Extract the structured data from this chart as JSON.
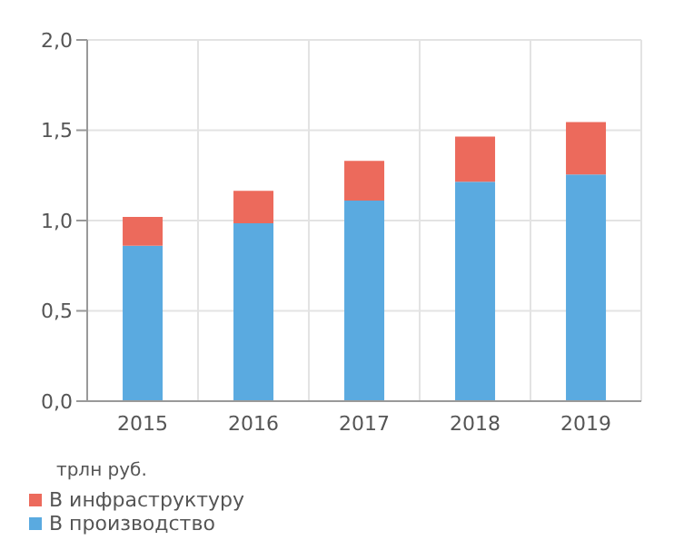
{
  "chart_data": {
    "type": "bar",
    "stacked": true,
    "categories": [
      "2015",
      "2016",
      "2017",
      "2018",
      "2019"
    ],
    "series": [
      {
        "name": "В производство",
        "color": "#5aaae0",
        "values": [
          0.86,
          0.985,
          1.11,
          1.215,
          1.255
        ]
      },
      {
        "name": "В инфраструктуру",
        "color": "#ec6a5c",
        "values": [
          0.16,
          0.18,
          0.22,
          0.25,
          0.29
        ]
      }
    ],
    "ylabel": "трлн руб.",
    "ylim": [
      0,
      2
    ],
    "yticks": [
      {
        "value": 0,
        "label": "0,0"
      },
      {
        "value": 0.5,
        "label": "0,5"
      },
      {
        "value": 1,
        "label": "1,0"
      },
      {
        "value": 1.5,
        "label": "1,5"
      },
      {
        "value": 2,
        "label": "2,0"
      }
    ],
    "grid": true,
    "legend": "bottom"
  }
}
